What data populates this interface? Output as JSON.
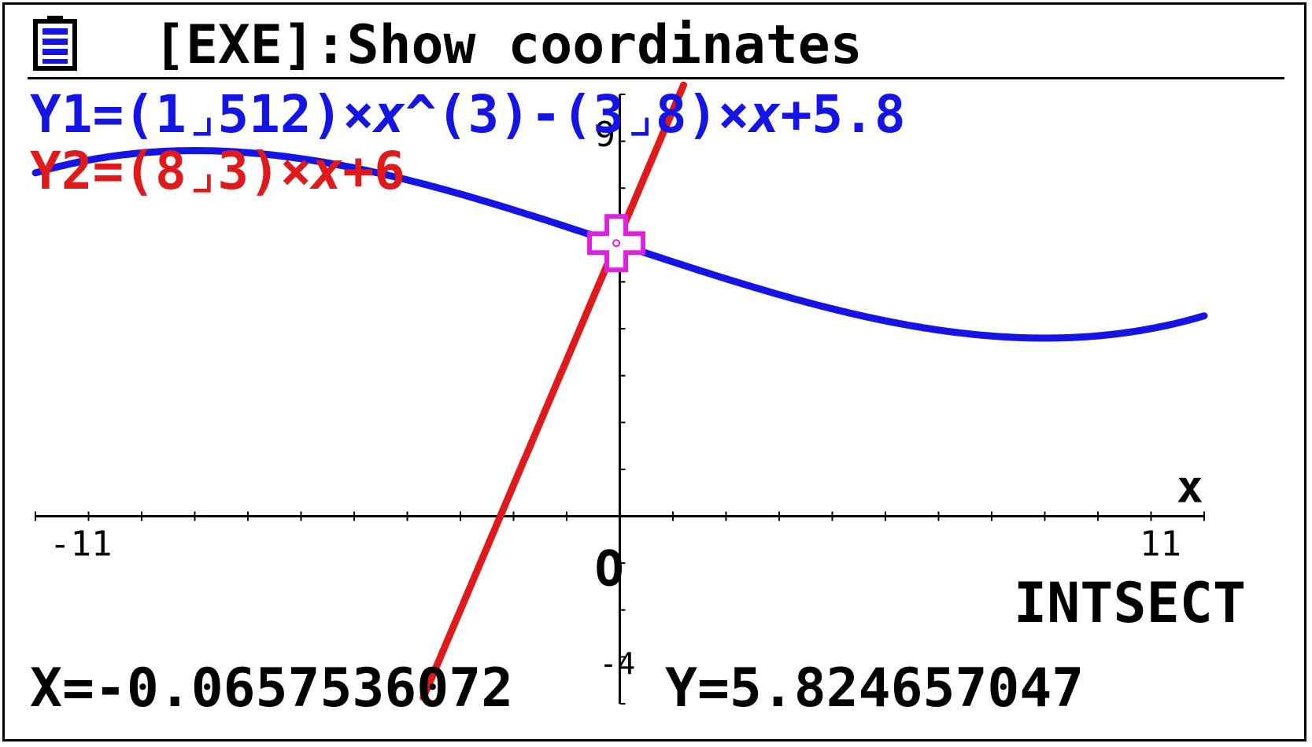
{
  "status_bar": {
    "battery_icon": "battery-icon",
    "hint": "[EXE]:Show coordinates"
  },
  "functions": [
    {
      "name": "Y1",
      "prefix": "Y1=(1⌟512)×",
      "var1": "x",
      "middle": "^(3)-(3⌟8)×",
      "var2": "x",
      "suffix": "+5.8",
      "color": "#1414e6"
    },
    {
      "name": "Y2",
      "prefix": "Y2=(8⌟3)×",
      "var1": "x",
      "suffix": "+6",
      "color": "#e01a1a"
    }
  ],
  "axes": {
    "x_label": "x",
    "origin_label": "O",
    "x_min_label": "-11",
    "x_max_label": "11",
    "y_max_label": "9",
    "y_min_label": "-4"
  },
  "mode_label": "INTSECT",
  "readout": {
    "x": "X=-0.0657536072",
    "y": "Y=5.824657047"
  },
  "chart_data": {
    "type": "line",
    "xlim": [
      -11,
      11
    ],
    "ylim": [
      -4,
      9
    ],
    "series": [
      {
        "name": "Y1",
        "formula": "(1/512)x^3-(3/8)x+5.8",
        "color": "#1414e6",
        "x_range": [
          -11,
          11
        ]
      },
      {
        "name": "Y2",
        "formula": "(8/3)x+6",
        "color": "#e01a1a",
        "x_range": [
          -3.7,
          1.2
        ]
      }
    ],
    "intersection": {
      "x": -0.0657536072,
      "y": 5.824657047
    },
    "grid": false
  }
}
